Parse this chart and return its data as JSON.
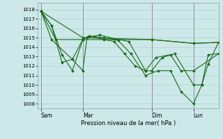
{
  "background_color": "#cce8e8",
  "grid_color": "#aacccc",
  "line_color": "#1a6b1a",
  "marker_color": "#1a6b1a",
  "xlabel": "Pression niveau de la mer( hPa )",
  "ylim": [
    1007.5,
    1018.7
  ],
  "yticks": [
    1008,
    1009,
    1010,
    1011,
    1012,
    1013,
    1014,
    1015,
    1016,
    1017,
    1018
  ],
  "xtick_labels": [
    "Sam",
    "Mar",
    "Dim",
    "Lun"
  ],
  "xtick_positions": [
    0.0,
    2.0,
    5.3,
    7.3
  ],
  "xlim": [
    -0.15,
    8.5
  ],
  "line1_x": [
    0.0,
    2.0,
    5.3,
    7.3,
    8.5
  ],
  "line1_y": [
    1017.8,
    1015.0,
    1014.8,
    1014.4,
    1014.5
  ],
  "line2_x": [
    0.0,
    0.5,
    1.0,
    1.5,
    2.0,
    2.3,
    3.0,
    3.7,
    4.3,
    5.0,
    5.6,
    6.2,
    6.7,
    7.3,
    7.7,
    8.0,
    8.5
  ],
  "line2_y": [
    1017.8,
    1016.3,
    1013.2,
    1011.5,
    1014.8,
    1015.2,
    1015.0,
    1014.7,
    1013.3,
    1011.0,
    1011.5,
    1011.5,
    1009.3,
    1008.0,
    1010.0,
    1012.2,
    1014.5
  ],
  "line3_x": [
    0.0,
    0.5,
    1.0,
    1.5,
    2.0,
    2.3,
    3.0,
    3.5,
    4.0,
    4.5,
    5.0,
    5.5,
    6.2,
    6.7,
    7.3,
    8.5
  ],
  "line3_y": [
    1017.8,
    1016.3,
    1012.4,
    1012.7,
    1014.8,
    1015.2,
    1014.8,
    1014.6,
    1013.3,
    1012.0,
    1011.5,
    1012.9,
    1013.2,
    1011.5,
    1011.5,
    1013.3
  ],
  "line4_x": [
    0.0,
    0.5,
    1.5,
    2.0,
    2.2,
    2.8,
    3.5,
    4.2,
    5.0,
    5.3,
    5.8,
    6.4,
    7.3,
    7.7,
    8.0,
    8.5
  ],
  "line4_y": [
    1017.8,
    1014.8,
    1012.7,
    1011.5,
    1015.0,
    1015.3,
    1014.9,
    1014.6,
    1011.5,
    1011.5,
    1012.9,
    1013.3,
    1010.0,
    1010.0,
    1013.2,
    1013.3
  ],
  "line5_x": [
    0.0,
    0.7,
    2.0,
    5.3,
    7.3,
    8.5
  ],
  "line5_y": [
    1017.8,
    1014.8,
    1014.8,
    1014.8,
    1014.4,
    1014.5
  ]
}
